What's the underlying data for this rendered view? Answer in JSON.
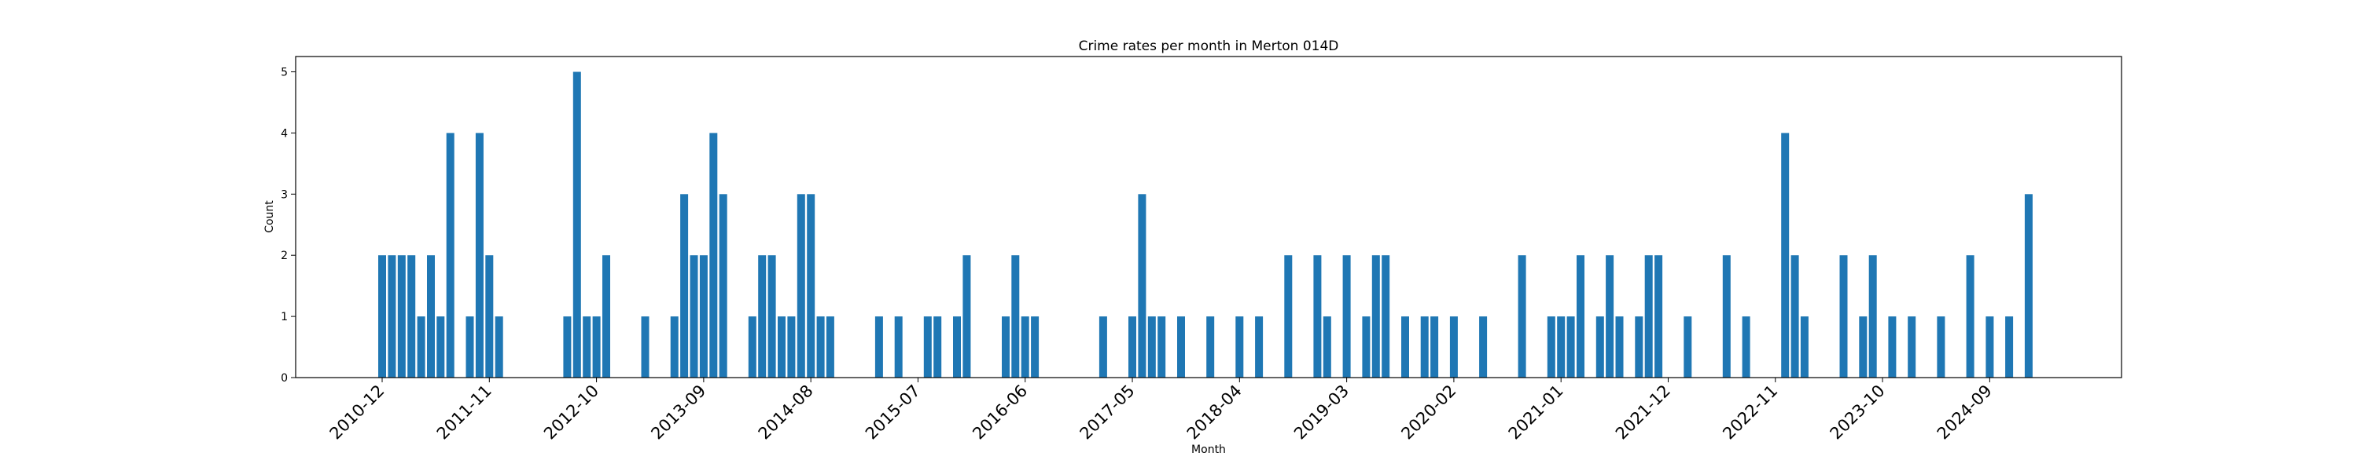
{
  "chart_data": {
    "type": "bar",
    "title": "Crime rates per month in Merton 014D",
    "xlabel": "Month",
    "ylabel": "Count",
    "ylim": [
      0,
      5.25
    ],
    "yticks": [
      0,
      1,
      2,
      3,
      4,
      5
    ],
    "grid": false,
    "bar_color": "#1f77b4",
    "x_start": "2010-12",
    "x_end": "2025-01",
    "xticks": [
      "2010-12",
      "2011-11",
      "2012-10",
      "2013-09",
      "2014-08",
      "2015-07",
      "2016-06",
      "2017-05",
      "2018-04",
      "2019-03",
      "2020-02",
      "2021-01",
      "2021-12",
      "2022-11",
      "2023-10",
      "2024-09"
    ],
    "bars": [
      {
        "x": "2010-12",
        "y": 2
      },
      {
        "x": "2011-01",
        "y": 2
      },
      {
        "x": "2011-02",
        "y": 2
      },
      {
        "x": "2011-03",
        "y": 2
      },
      {
        "x": "2011-04",
        "y": 1
      },
      {
        "x": "2011-05",
        "y": 2
      },
      {
        "x": "2011-06",
        "y": 1
      },
      {
        "x": "2011-07",
        "y": 4
      },
      {
        "x": "2011-09",
        "y": 1
      },
      {
        "x": "2011-10",
        "y": 4
      },
      {
        "x": "2011-11",
        "y": 2
      },
      {
        "x": "2011-12",
        "y": 1
      },
      {
        "x": "2012-07",
        "y": 1
      },
      {
        "x": "2012-08",
        "y": 5
      },
      {
        "x": "2012-09",
        "y": 1
      },
      {
        "x": "2012-10",
        "y": 1
      },
      {
        "x": "2012-11",
        "y": 2
      },
      {
        "x": "2013-03",
        "y": 1
      },
      {
        "x": "2013-06",
        "y": 1
      },
      {
        "x": "2013-07",
        "y": 3
      },
      {
        "x": "2013-08",
        "y": 2
      },
      {
        "x": "2013-09",
        "y": 2
      },
      {
        "x": "2013-10",
        "y": 4
      },
      {
        "x": "2013-11",
        "y": 3
      },
      {
        "x": "2014-02",
        "y": 1
      },
      {
        "x": "2014-03",
        "y": 2
      },
      {
        "x": "2014-04",
        "y": 2
      },
      {
        "x": "2014-05",
        "y": 1
      },
      {
        "x": "2014-06",
        "y": 1
      },
      {
        "x": "2014-07",
        "y": 3
      },
      {
        "x": "2014-08",
        "y": 3
      },
      {
        "x": "2014-09",
        "y": 1
      },
      {
        "x": "2014-10",
        "y": 1
      },
      {
        "x": "2015-03",
        "y": 1
      },
      {
        "x": "2015-05",
        "y": 1
      },
      {
        "x": "2015-08",
        "y": 1
      },
      {
        "x": "2015-09",
        "y": 1
      },
      {
        "x": "2015-11",
        "y": 1
      },
      {
        "x": "2015-12",
        "y": 2
      },
      {
        "x": "2016-04",
        "y": 1
      },
      {
        "x": "2016-05",
        "y": 2
      },
      {
        "x": "2016-06",
        "y": 1
      },
      {
        "x": "2016-07",
        "y": 1
      },
      {
        "x": "2017-02",
        "y": 1
      },
      {
        "x": "2017-05",
        "y": 1
      },
      {
        "x": "2017-06",
        "y": 3
      },
      {
        "x": "2017-07",
        "y": 1
      },
      {
        "x": "2017-08",
        "y": 1
      },
      {
        "x": "2017-10",
        "y": 1
      },
      {
        "x": "2018-01",
        "y": 1
      },
      {
        "x": "2018-04",
        "y": 1
      },
      {
        "x": "2018-06",
        "y": 1
      },
      {
        "x": "2018-09",
        "y": 2
      },
      {
        "x": "2018-12",
        "y": 2
      },
      {
        "x": "2019-01",
        "y": 1
      },
      {
        "x": "2019-03",
        "y": 2
      },
      {
        "x": "2019-05",
        "y": 1
      },
      {
        "x": "2019-06",
        "y": 2
      },
      {
        "x": "2019-07",
        "y": 2
      },
      {
        "x": "2019-09",
        "y": 1
      },
      {
        "x": "2019-11",
        "y": 1
      },
      {
        "x": "2019-12",
        "y": 1
      },
      {
        "x": "2020-02",
        "y": 1
      },
      {
        "x": "2020-05",
        "y": 1
      },
      {
        "x": "2020-09",
        "y": 2
      },
      {
        "x": "2020-12",
        "y": 1
      },
      {
        "x": "2021-01",
        "y": 1
      },
      {
        "x": "2021-02",
        "y": 1
      },
      {
        "x": "2021-03",
        "y": 2
      },
      {
        "x": "2021-05",
        "y": 1
      },
      {
        "x": "2021-06",
        "y": 2
      },
      {
        "x": "2021-07",
        "y": 1
      },
      {
        "x": "2021-09",
        "y": 1
      },
      {
        "x": "2021-10",
        "y": 2
      },
      {
        "x": "2021-11",
        "y": 2
      },
      {
        "x": "2022-02",
        "y": 1
      },
      {
        "x": "2022-06",
        "y": 2
      },
      {
        "x": "2022-08",
        "y": 1
      },
      {
        "x": "2022-12",
        "y": 4
      },
      {
        "x": "2023-01",
        "y": 2
      },
      {
        "x": "2023-02",
        "y": 1
      },
      {
        "x": "2023-06",
        "y": 2
      },
      {
        "x": "2023-08",
        "y": 1
      },
      {
        "x": "2023-09",
        "y": 2
      },
      {
        "x": "2023-11",
        "y": 1
      },
      {
        "x": "2024-01",
        "y": 1
      },
      {
        "x": "2024-04",
        "y": 1
      },
      {
        "x": "2024-07",
        "y": 2
      },
      {
        "x": "2024-09",
        "y": 1
      },
      {
        "x": "2024-11",
        "y": 1
      },
      {
        "x": "2025-01",
        "y": 3
      }
    ]
  }
}
